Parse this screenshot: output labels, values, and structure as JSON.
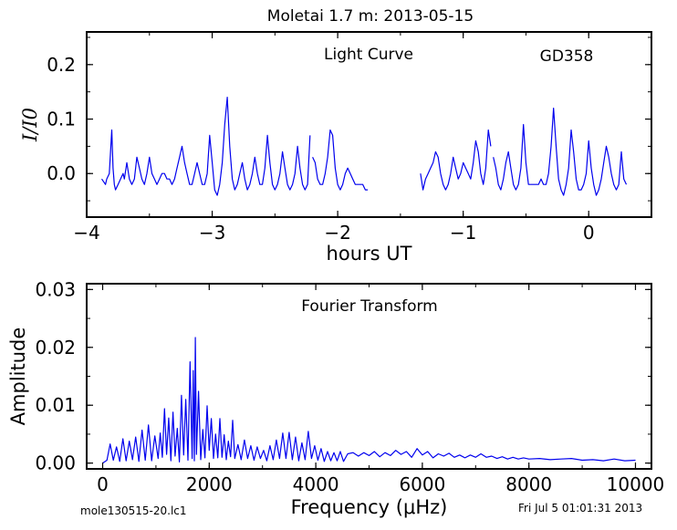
{
  "figure": {
    "title": "Moletai 1.7 m:  2013-05-15",
    "filename": "mole130515-20.lc1",
    "datestamp": "Fri Jul  5 01:01:31 2013"
  },
  "colors": {
    "series": "#0000ee",
    "axes": "#000000",
    "background": "#ffffff"
  },
  "chart_data": [
    {
      "type": "line",
      "title": "Light Curve",
      "annotation": "GD358",
      "xlabel": "hours UT",
      "ylabel": "I/I0",
      "xlim": [
        -4.0,
        0.5
      ],
      "ylim": [
        -0.08,
        0.26
      ],
      "xticks": [
        -4,
        -3,
        -2,
        -1,
        0
      ],
      "xtick_labels": [
        "−4",
        "−3",
        "−2",
        "−1",
        "0"
      ],
      "yticks": [
        0.0,
        0.1,
        0.2
      ],
      "ytick_labels": [
        "0.0",
        "0.1",
        "0.2"
      ],
      "grid": false,
      "segments": [
        {
          "x": [
            -3.88,
            -3.85,
            -3.84,
            -3.82,
            -3.8,
            -3.79,
            -3.78,
            -3.77,
            -3.75,
            -3.73,
            -3.71,
            -3.7,
            -3.68,
            -3.66,
            -3.64,
            -3.62,
            -3.6,
            -3.58,
            -3.56,
            -3.54,
            -3.52,
            -3.5,
            -3.48,
            -3.46,
            -3.44,
            -3.42,
            -3.4,
            -3.38,
            -3.36,
            -3.34,
            -3.32,
            -3.3,
            -3.28,
            -3.26,
            -3.24,
            -3.22,
            -3.2,
            -3.18,
            -3.16,
            -3.14,
            -3.12,
            -3.1,
            -3.08,
            -3.06,
            -3.04,
            -3.02,
            -3.0,
            -2.98,
            -2.96,
            -2.94,
            -2.92,
            -2.9,
            -2.88,
            -2.86,
            -2.84,
            -2.82,
            -2.8,
            -2.78,
            -2.76,
            -2.74,
            -2.72,
            -2.7,
            -2.68,
            -2.66,
            -2.64,
            -2.62,
            -2.6,
            -2.58,
            -2.56,
            -2.54,
            -2.52,
            -2.5,
            -2.48,
            -2.46,
            -2.44,
            -2.42,
            -2.4,
            -2.38,
            -2.36,
            -2.34,
            -2.32,
            -2.3,
            -2.28,
            -2.26,
            -2.24,
            -2.22
          ],
          "y": [
            -0.01,
            -0.02,
            -0.01,
            0.0,
            0.08,
            0.01,
            -0.02,
            -0.03,
            -0.02,
            -0.01,
            0.0,
            -0.01,
            0.02,
            -0.01,
            -0.02,
            -0.01,
            0.03,
            0.01,
            -0.01,
            -0.02,
            0.0,
            0.03,
            0.0,
            -0.01,
            -0.02,
            -0.01,
            0.0,
            0.0,
            -0.01,
            -0.01,
            -0.02,
            -0.01,
            0.01,
            0.03,
            0.05,
            0.02,
            0.0,
            -0.02,
            -0.02,
            0.0,
            0.02,
            0.0,
            -0.02,
            -0.02,
            0.0,
            0.07,
            0.02,
            -0.03,
            -0.04,
            -0.02,
            0.02,
            0.09,
            0.14,
            0.05,
            -0.01,
            -0.03,
            -0.02,
            0.0,
            0.02,
            -0.01,
            -0.03,
            -0.02,
            0.0,
            0.03,
            0.0,
            -0.02,
            -0.02,
            0.01,
            0.07,
            0.02,
            -0.02,
            -0.03,
            -0.02,
            0.0,
            0.04,
            0.01,
            -0.02,
            -0.03,
            -0.02,
            0.0,
            0.05,
            0.01,
            -0.02,
            -0.03,
            -0.02,
            0.07
          ]
        },
        {
          "x": [
            -2.2,
            -2.18,
            -2.16,
            -2.14,
            -2.12,
            -2.1,
            -2.08,
            -2.06,
            -2.04,
            -2.02,
            -2.0,
            -1.98,
            -1.96,
            -1.94,
            -1.92,
            -1.9,
            -1.88,
            -1.86,
            -1.84,
            -1.82,
            -1.8,
            -1.78,
            -1.76
          ],
          "y": [
            0.03,
            0.02,
            -0.01,
            -0.02,
            -0.02,
            0.0,
            0.03,
            0.08,
            0.07,
            0.01,
            -0.02,
            -0.03,
            -0.02,
            0.0,
            0.01,
            0.0,
            -0.01,
            -0.02,
            -0.02,
            -0.02,
            -0.02,
            -0.03,
            -0.03
          ]
        },
        {
          "x": [
            -1.34,
            -1.32,
            -1.3,
            -1.28,
            -1.26,
            -1.24,
            -1.22,
            -1.2,
            -1.18,
            -1.16,
            -1.14,
            -1.12,
            -1.1,
            -1.08,
            -1.06,
            -1.04,
            -1.02,
            -1.0,
            -0.98,
            -0.96,
            -0.94,
            -0.92,
            -0.9,
            -0.88,
            -0.86,
            -0.84,
            -0.82,
            -0.8,
            -0.78
          ],
          "y": [
            0.0,
            -0.03,
            -0.01,
            0.0,
            0.01,
            0.02,
            0.04,
            0.03,
            0.0,
            -0.02,
            -0.03,
            -0.02,
            0.0,
            0.03,
            0.01,
            -0.01,
            0.0,
            0.02,
            0.01,
            0.0,
            -0.01,
            0.02,
            0.06,
            0.04,
            0.0,
            -0.02,
            0.01,
            0.08,
            0.05
          ]
        },
        {
          "x": [
            -0.76,
            -0.74,
            -0.72,
            -0.7,
            -0.68,
            -0.66,
            -0.64,
            -0.62,
            -0.6,
            -0.58,
            -0.56,
            -0.54,
            -0.52,
            -0.5,
            -0.48,
            -0.46,
            -0.44,
            -0.42,
            -0.4,
            -0.38,
            -0.36,
            -0.34,
            -0.32,
            -0.3,
            -0.28,
            -0.26,
            -0.24,
            -0.22,
            -0.2,
            -0.18,
            -0.16,
            -0.14,
            -0.12,
            -0.1,
            -0.08,
            -0.06,
            -0.04,
            -0.02,
            0.0,
            0.02,
            0.04,
            0.06,
            0.08,
            0.1,
            0.12,
            0.14,
            0.16,
            0.18,
            0.2,
            0.22,
            0.24,
            0.26,
            0.28,
            0.3
          ],
          "y": [
            0.03,
            0.01,
            -0.02,
            -0.03,
            -0.01,
            0.02,
            0.04,
            0.01,
            -0.02,
            -0.03,
            -0.02,
            0.01,
            0.09,
            0.02,
            -0.02,
            -0.02,
            -0.02,
            -0.02,
            -0.02,
            -0.01,
            -0.02,
            -0.02,
            0.0,
            0.05,
            0.12,
            0.05,
            -0.01,
            -0.03,
            -0.04,
            -0.02,
            0.01,
            0.08,
            0.04,
            -0.01,
            -0.03,
            -0.03,
            -0.02,
            0.0,
            0.06,
            0.01,
            -0.02,
            -0.04,
            -0.03,
            -0.01,
            0.02,
            0.05,
            0.03,
            0.0,
            -0.02,
            -0.03,
            -0.02,
            0.04,
            -0.01,
            -0.02
          ]
        }
      ]
    },
    {
      "type": "line",
      "title": "Fourier Transform",
      "xlabel": "Frequency (μHz)",
      "ylabel": "Amplitude",
      "xlim": [
        -300,
        10300
      ],
      "ylim": [
        -0.001,
        0.031
      ],
      "xticks": [
        0,
        2000,
        4000,
        6000,
        8000,
        10000
      ],
      "xtick_labels": [
        "0",
        "2000",
        "4000",
        "6000",
        "8000",
        "10000"
      ],
      "yticks": [
        0.0,
        0.01,
        0.02,
        0.03
      ],
      "ytick_labels": [
        "0.00",
        "0.01",
        "0.02",
        "0.03"
      ],
      "grid": false,
      "x": [
        0,
        80,
        140,
        200,
        260,
        320,
        380,
        440,
        500,
        560,
        620,
        680,
        740,
        800,
        860,
        920,
        980,
        1040,
        1080,
        1120,
        1160,
        1200,
        1240,
        1280,
        1320,
        1360,
        1400,
        1440,
        1480,
        1520,
        1560,
        1600,
        1640,
        1680,
        1700,
        1720,
        1740,
        1760,
        1800,
        1840,
        1880,
        1920,
        1960,
        2000,
        2040,
        2080,
        2120,
        2160,
        2200,
        2240,
        2280,
        2320,
        2360,
        2400,
        2440,
        2480,
        2540,
        2600,
        2660,
        2720,
        2780,
        2840,
        2900,
        2960,
        3020,
        3080,
        3140,
        3200,
        3260,
        3320,
        3380,
        3440,
        3500,
        3560,
        3620,
        3680,
        3740,
        3800,
        3860,
        3920,
        3980,
        4040,
        4100,
        4160,
        4220,
        4280,
        4340,
        4400,
        4460,
        4520,
        4600,
        4700,
        4800,
        4900,
        5000,
        5100,
        5200,
        5300,
        5400,
        5500,
        5600,
        5700,
        5800,
        5900,
        6000,
        6100,
        6200,
        6300,
        6400,
        6500,
        6600,
        6700,
        6800,
        6900,
        7000,
        7100,
        7200,
        7300,
        7400,
        7500,
        7600,
        7700,
        7800,
        7900,
        8000,
        8200,
        8400,
        8600,
        8800,
        9000,
        9200,
        9400,
        9600,
        9800,
        10000
      ],
      "y": [
        0.0,
        0.0005,
        0.0033,
        0.0005,
        0.0028,
        0.0003,
        0.0042,
        0.0004,
        0.0038,
        0.0006,
        0.0045,
        0.0003,
        0.0057,
        0.0005,
        0.0066,
        0.0004,
        0.0047,
        0.0008,
        0.0052,
        0.001,
        0.0094,
        0.0015,
        0.0078,
        0.0004,
        0.0088,
        0.0012,
        0.006,
        0.0002,
        0.0117,
        0.0014,
        0.011,
        0.0005,
        0.0175,
        0.0008,
        0.016,
        0.0004,
        0.0217,
        0.0015,
        0.0124,
        0.0006,
        0.0058,
        0.0009,
        0.0099,
        0.0022,
        0.0077,
        0.0008,
        0.005,
        0.0009,
        0.0077,
        0.001,
        0.0049,
        0.0006,
        0.0038,
        0.0011,
        0.0074,
        0.0008,
        0.0032,
        0.0006,
        0.004,
        0.0008,
        0.003,
        0.0005,
        0.0028,
        0.0008,
        0.0022,
        0.0004,
        0.003,
        0.0006,
        0.004,
        0.0008,
        0.0052,
        0.0008,
        0.0053,
        0.0006,
        0.0045,
        0.0004,
        0.0035,
        0.0006,
        0.0055,
        0.0008,
        0.003,
        0.0005,
        0.0025,
        0.0003,
        0.002,
        0.0004,
        0.0018,
        0.0004,
        0.002,
        0.0003,
        0.0016,
        0.0018,
        0.0012,
        0.0018,
        0.0013,
        0.002,
        0.0011,
        0.0018,
        0.0013,
        0.0022,
        0.0015,
        0.002,
        0.001,
        0.0025,
        0.0014,
        0.002,
        0.0009,
        0.0016,
        0.0012,
        0.0017,
        0.001,
        0.0014,
        0.0009,
        0.0014,
        0.001,
        0.0016,
        0.001,
        0.0012,
        0.0008,
        0.0011,
        0.0007,
        0.001,
        0.0007,
        0.0009,
        0.0007,
        0.0008,
        0.0006,
        0.0007,
        0.0008,
        0.0005,
        0.0006,
        0.0004,
        0.0007,
        0.0004,
        0.0005
      ]
    }
  ]
}
